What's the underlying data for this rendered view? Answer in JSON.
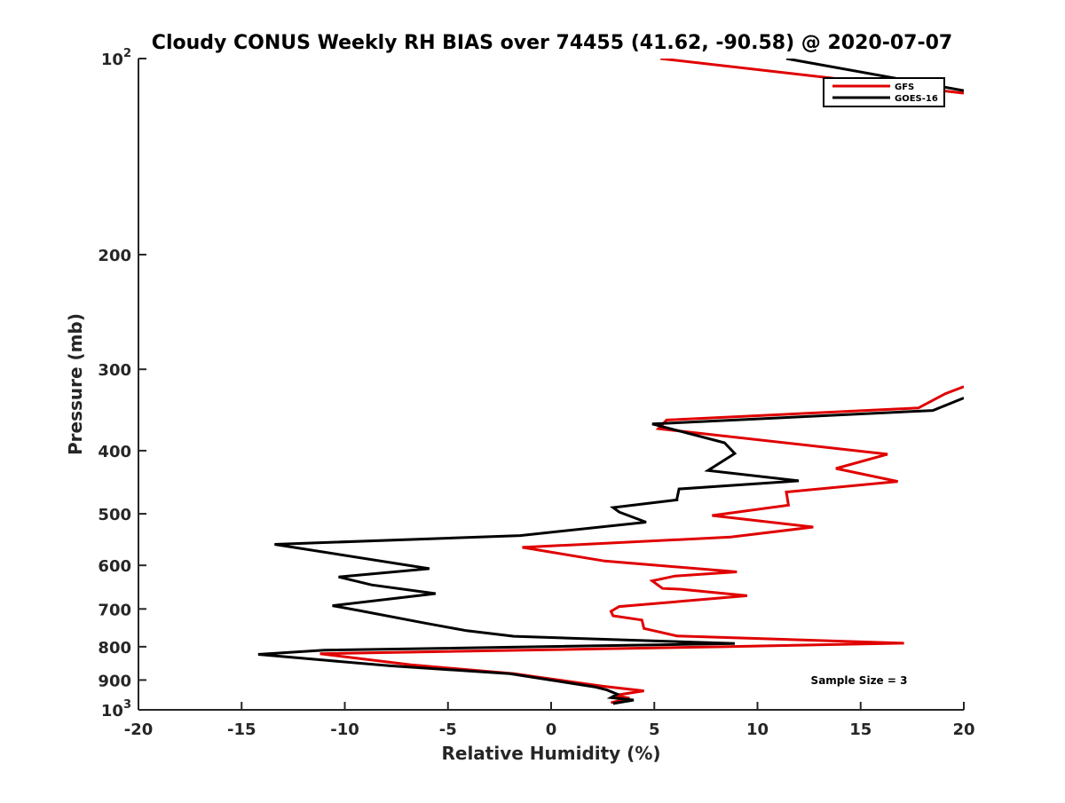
{
  "chart_data": {
    "type": "line",
    "title": "Cloudy CONUS Weekly RH BIAS over 74455 (41.62, -90.58) @ 2020-07-07",
    "xlabel": "Relative Humidity (%)",
    "ylabel": "Pressure (mb)",
    "xlim": [
      -20,
      20
    ],
    "ylim": [
      1000,
      100
    ],
    "y_scale": "log",
    "x_ticks": [
      "-20",
      "-15",
      "-10",
      "-5",
      "0",
      "5",
      "10",
      "15",
      "20"
    ],
    "y_ticks": [
      {
        "value": 100,
        "base": "10",
        "exp": "2"
      },
      {
        "value": 200,
        "label": "200"
      },
      {
        "value": 300,
        "label": "300"
      },
      {
        "value": 400,
        "label": "400"
      },
      {
        "value": 500,
        "label": "500"
      },
      {
        "value": 600,
        "label": "600"
      },
      {
        "value": 700,
        "label": "700"
      },
      {
        "value": 800,
        "label": "800"
      },
      {
        "value": 900,
        "label": "900"
      },
      {
        "value": 1000,
        "base": "10",
        "exp": "3"
      }
    ],
    "legend_position": "top-right",
    "annotation": "Sample Size = 3",
    "series": [
      {
        "name": "GFS",
        "color": "#e00000",
        "points": [
          [
            2.9,
            975
          ],
          [
            3.8,
            960
          ],
          [
            3.1,
            950
          ],
          [
            4.5,
            935
          ],
          [
            2.5,
            920
          ],
          [
            -1.8,
            880
          ],
          [
            -6.8,
            853
          ],
          [
            -11.2,
            820
          ],
          [
            8.3,
            800
          ],
          [
            17.1,
            790
          ],
          [
            6.1,
            770
          ],
          [
            4.5,
            750
          ],
          [
            4.4,
            728
          ],
          [
            3.0,
            717
          ],
          [
            2.9,
            706
          ],
          [
            3.3,
            694
          ],
          [
            9.5,
            668
          ],
          [
            6.3,
            653
          ],
          [
            5.4,
            651
          ],
          [
            4.9,
            634
          ],
          [
            6.0,
            623
          ],
          [
            9.0,
            614
          ],
          [
            2.6,
            591
          ],
          [
            -1.4,
            563
          ],
          [
            8.7,
            543
          ],
          [
            12.7,
            524
          ],
          [
            7.8,
            503
          ],
          [
            11.5,
            485
          ],
          [
            11.4,
            463
          ],
          [
            16.8,
            446
          ],
          [
            13.8,
            426
          ],
          [
            16.3,
            405
          ],
          [
            5.2,
            370
          ],
          [
            5.6,
            359
          ],
          [
            17.8,
            344
          ],
          [
            19.1,
            327
          ],
          [
            20.0,
            319
          ]
        ],
        "upper_segment": [
          [
            5.3,
            100
          ],
          [
            20.0,
            113
          ]
        ]
      },
      {
        "name": "GOES-16",
        "color": "#000000",
        "points": [
          [
            3.0,
            978
          ],
          [
            4.0,
            966
          ],
          [
            2.9,
            958
          ],
          [
            3.2,
            946
          ],
          [
            2.7,
            932
          ],
          [
            2.1,
            922
          ],
          [
            -2.0,
            880
          ],
          [
            -7.8,
            856
          ],
          [
            -10.8,
            840
          ],
          [
            -14.2,
            822
          ],
          [
            -11.0,
            810
          ],
          [
            8.9,
            791
          ],
          [
            -1.8,
            771
          ],
          [
            -4.1,
            756
          ],
          [
            -6.1,
            736
          ],
          [
            -9.3,
            704
          ],
          [
            -10.6,
            692
          ],
          [
            -5.6,
            663
          ],
          [
            -8.7,
            643
          ],
          [
            -10.3,
            625
          ],
          [
            -5.9,
            607
          ],
          [
            -13.4,
            557
          ],
          [
            -1.5,
            540
          ],
          [
            4.6,
            515
          ],
          [
            3.3,
            497
          ],
          [
            3.0,
            489
          ],
          [
            6.1,
            476
          ],
          [
            6.1,
            474
          ],
          [
            6.2,
            458
          ],
          [
            12.0,
            445
          ],
          [
            7.6,
            429
          ],
          [
            8.9,
            404
          ],
          [
            8.4,
            389
          ],
          [
            4.9,
            364
          ],
          [
            18.5,
            347
          ],
          [
            20.0,
            332
          ]
        ],
        "upper_segment": [
          [
            11.4,
            100
          ],
          [
            20.0,
            112
          ]
        ]
      }
    ]
  }
}
